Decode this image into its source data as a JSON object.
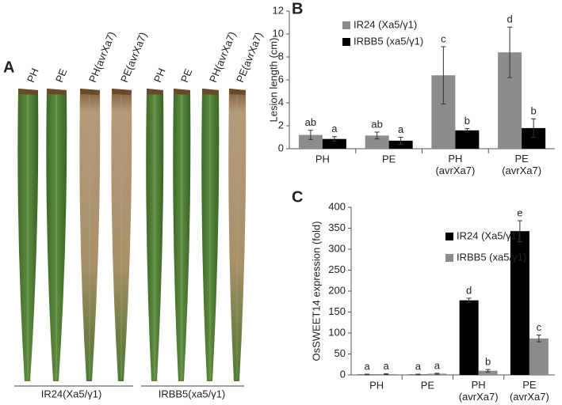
{
  "panel_a": {
    "letter": "A",
    "leaf_labels": [
      "PH",
      "PE",
      "PH(avrXa7)",
      "PE(avrXa7)",
      "PH",
      "PE",
      "PH(avrXa7)",
      "PE(avrXa7)"
    ],
    "groups": [
      "IR24(Xa5/γ1)",
      "IRBB5(xa5/γ1)"
    ]
  },
  "chart_data": [
    {
      "type": "bar",
      "letter": "B",
      "y_label": "Lesion length (cm)",
      "categories": [
        "PH",
        "PE",
        "PH (avrXa7)",
        "PE (avrXa7)"
      ],
      "ylim": [
        0,
        12
      ],
      "yticks": [
        0,
        2,
        4,
        6,
        8,
        10,
        12
      ],
      "series": [
        {
          "name": "IR24 (Xa5/γ1)",
          "color": "#8c8c8c",
          "values": [
            1.2,
            1.15,
            6.4,
            8.4
          ],
          "errors": [
            0.4,
            0.3,
            2.5,
            2.2
          ],
          "letters": [
            "ab",
            "ab",
            "c",
            "d"
          ]
        },
        {
          "name": "IRBB5 (xa5/γ1)",
          "color": "#000000",
          "values": [
            0.85,
            0.7,
            1.6,
            1.8
          ],
          "errors": [
            0.2,
            0.3,
            0.15,
            0.8
          ],
          "letters": [
            "a",
            "a",
            "b",
            "b"
          ]
        }
      ]
    },
    {
      "type": "bar",
      "letter": "C",
      "y_label": "OsSWEET14 expression (fold)",
      "categories": [
        "PH",
        "PE",
        "PH (avrXa7)",
        "PE (avrXa7)"
      ],
      "ylim": [
        0,
        400
      ],
      "yticks": [
        0,
        50,
        100,
        150,
        200,
        250,
        300,
        350,
        400
      ],
      "series": [
        {
          "name": "IR24 (Xa5/γ1)",
          "color": "#000000",
          "values": [
            1,
            1,
            178,
            343
          ],
          "errors": [
            1,
            1,
            5,
            25
          ],
          "letters": [
            "a",
            "a",
            "d",
            "e"
          ]
        },
        {
          "name": "IRBB5 (xa5/γ1)",
          "color": "#8c8c8c",
          "values": [
            2,
            3,
            10,
            87
          ],
          "errors": [
            1,
            1,
            3,
            8
          ],
          "letters": [
            "a",
            "a",
            "b",
            "c"
          ]
        }
      ]
    }
  ]
}
